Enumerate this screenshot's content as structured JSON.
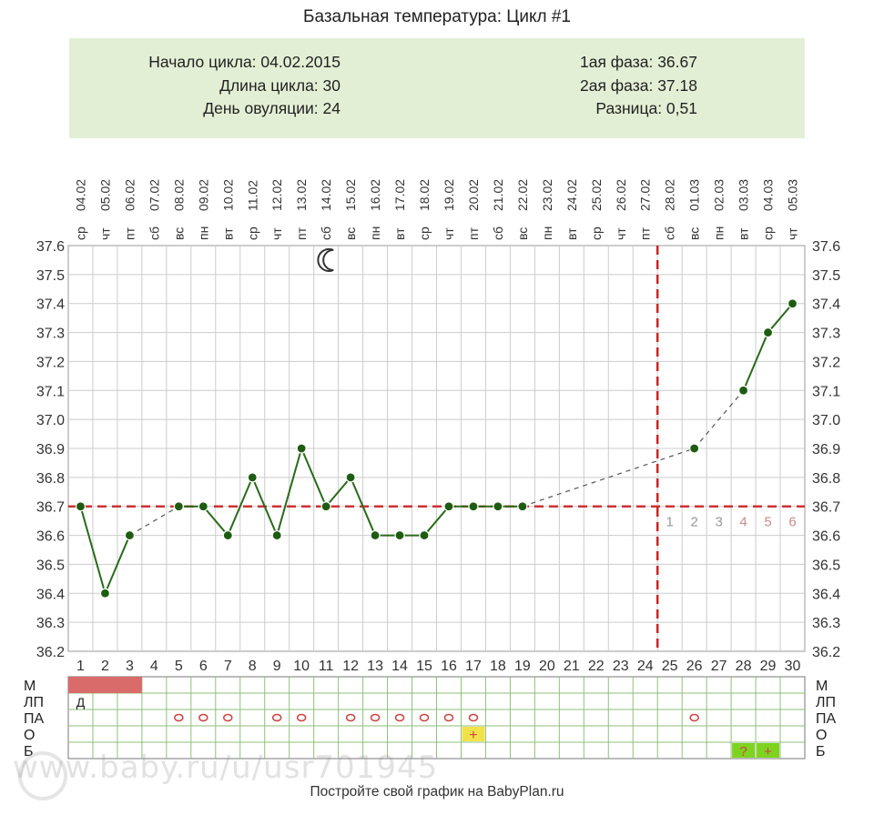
{
  "title": "Базальная температура: Цикл #1",
  "info": {
    "left": [
      "Начало цикла: 04.02.2015",
      "Длина цикла: 30",
      "День овуляции: 24"
    ],
    "right": [
      "1ая фаза: 36.67",
      "2ая фаза: 37.18",
      "Разница: 0,51"
    ]
  },
  "chart_data": {
    "type": "line",
    "title": "Базальная температура: Цикл #1",
    "xlabel": "",
    "ylabel": "",
    "ylim": [
      36.2,
      37.6
    ],
    "y_ticks": [
      "37.6",
      "37.5",
      "37.4",
      "37.3",
      "37.2",
      "37.1",
      "37.0",
      "36.9",
      "36.8",
      "36.7",
      "36.6",
      "36.5",
      "36.4",
      "36.3",
      "36.2"
    ],
    "days": [
      1,
      2,
      3,
      4,
      5,
      6,
      7,
      8,
      9,
      10,
      11,
      12,
      13,
      14,
      15,
      16,
      17,
      18,
      19,
      20,
      21,
      22,
      23,
      24,
      25,
      26,
      27,
      28,
      29,
      30
    ],
    "dates": [
      "04.02",
      "05.02",
      "06.02",
      "07.02",
      "08.02",
      "09.02",
      "10.02",
      "11.02",
      "12.02",
      "13.02",
      "14.02",
      "15.02",
      "16.02",
      "17.02",
      "18.02",
      "19.02",
      "20.02",
      "21.02",
      "22.02",
      "23.02",
      "24.02",
      "25.02",
      "26.02",
      "27.02",
      "28.02",
      "01.03",
      "02.03",
      "03.03",
      "04.03",
      "05.03"
    ],
    "weekdays": [
      "ср",
      "чт",
      "пт",
      "сб",
      "вс",
      "пн",
      "вт",
      "ср",
      "чт",
      "пт",
      "сб",
      "вс",
      "пн",
      "вт",
      "ср",
      "чт",
      "пт",
      "сб",
      "вс",
      "пн",
      "вт",
      "ср",
      "чт",
      "пт",
      "сб",
      "вс",
      "пн",
      "вт",
      "ср",
      "чт"
    ],
    "temps": [
      36.7,
      36.4,
      36.6,
      null,
      36.7,
      36.7,
      36.6,
      36.8,
      36.6,
      36.9,
      36.7,
      36.8,
      36.6,
      36.6,
      36.6,
      36.7,
      36.7,
      36.7,
      36.7,
      null,
      null,
      null,
      null,
      null,
      null,
      36.9,
      null,
      37.1,
      37.3,
      37.4
    ],
    "gap_links": [
      [
        3,
        5
      ],
      [
        19,
        26
      ],
      [
        26,
        28
      ]
    ],
    "coverline": 36.7,
    "ovulation_day": 24,
    "luteal_labels": [
      "1",
      "2",
      "3",
      "4",
      "5",
      "6"
    ],
    "luteal_start_day": 25,
    "moon_day": 11,
    "colors": {
      "line": "#2a6a1a",
      "point": "#1e5c12",
      "coverline": "#cc3333",
      "ovulation": "#cc2222",
      "grid": "#cccccc",
      "gap": "#555555"
    }
  },
  "table": {
    "rows": [
      {
        "label": "М",
        "right": "М"
      },
      {
        "label": "ЛП",
        "right": "ЛП"
      },
      {
        "label": "ПА",
        "right": "ПА"
      },
      {
        "label": "О",
        "right": "О"
      },
      {
        "label": "Б",
        "right": "Б"
      }
    ],
    "menses_days": [
      1,
      2,
      3
    ],
    "lp_marks": [
      {
        "day": 1,
        "text": "Д"
      }
    ],
    "pa_days": [
      5,
      6,
      7,
      9,
      10,
      12,
      13,
      14,
      15,
      16,
      17,
      26
    ],
    "pa_symbol": "o",
    "o_marks": [
      {
        "day": 17,
        "text": "+",
        "color": "#f2e24a"
      }
    ],
    "b_marks": [
      {
        "day": 28,
        "text": "?",
        "color": "#7ed321"
      },
      {
        "day": 29,
        "text": "+",
        "color": "#7ed321"
      }
    ],
    "menses_color": "#d96b6b"
  },
  "watermark": "www.baby.ru/u/usr701945",
  "footer": "Постройте свой график на BabyPlan.ru"
}
